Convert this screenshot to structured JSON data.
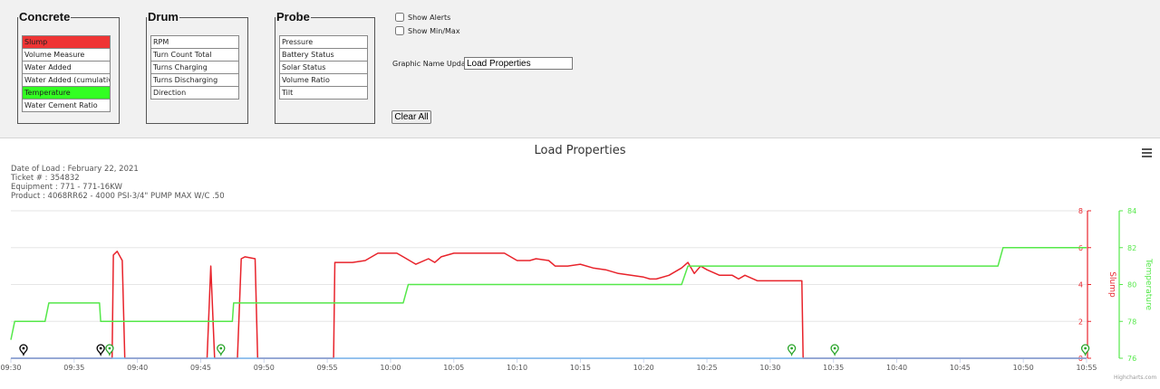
{
  "panels": {
    "concrete": {
      "legend": "Concrete",
      "items": [
        {
          "label": "Slump",
          "color": "#ef3535"
        },
        {
          "label": "Volume Measure",
          "color": "#ffffff"
        },
        {
          "label": "Water Added",
          "color": "#ffffff"
        },
        {
          "label": "Water Added (cumulative)",
          "color": "#ffffff"
        },
        {
          "label": "Temperature",
          "color": "#33ff22"
        },
        {
          "label": "Water Cement Ratio",
          "color": "#ffffff"
        }
      ]
    },
    "drum": {
      "legend": "Drum",
      "items": [
        {
          "label": "RPM"
        },
        {
          "label": "Turn Count Total"
        },
        {
          "label": "Turns Charging"
        },
        {
          "label": "Turns Discharging"
        },
        {
          "label": "Direction"
        }
      ]
    },
    "probe": {
      "legend": "Probe",
      "items": [
        {
          "label": "Pressure"
        },
        {
          "label": "Battery Status"
        },
        {
          "label": "Solar Status"
        },
        {
          "label": "Volume Ratio"
        },
        {
          "label": "Tilt"
        }
      ]
    }
  },
  "options": {
    "show_alerts": "Show Alerts",
    "show_minmax": "Show Min/Max",
    "graphic_name_label": "Graphic Name Update :",
    "graphic_name_value": "Load Properties",
    "clear_all": "Clear All"
  },
  "chart_data": {
    "type": "line",
    "title": "Load Properties",
    "subtitle": [
      "Date of Load : February 22, 2021",
      "Ticket # : 354832",
      "Equipment : 771 - 771-16KW",
      "Product : 4068RR62 - 4000 PSI-3/4\" PUMP MAX W/C .50"
    ],
    "x_ticks": [
      "09:30",
      "09:35",
      "09:40",
      "09:45",
      "09:50",
      "09:55",
      "10:00",
      "10:05",
      "10:10",
      "10:15",
      "10:20",
      "10:25",
      "10:30",
      "10:35",
      "10:40",
      "10:45",
      "10:50",
      "10:55"
    ],
    "xlim": [
      "09:30",
      "10:55"
    ],
    "axes": [
      {
        "label": "Slump",
        "ylim": [
          0,
          8
        ],
        "ticks": [
          0,
          2,
          4,
          6,
          8
        ],
        "color": "#e8232b",
        "position": "right"
      },
      {
        "label": "Temperature",
        "ylim": [
          76,
          84
        ],
        "ticks": [
          76,
          78,
          80,
          82,
          84
        ],
        "color": "#55e84a",
        "position": "right-outer"
      }
    ],
    "series": [
      {
        "name": "Slump",
        "color": "#e8232b",
        "points": [
          [
            "09:30",
            0
          ],
          [
            "09:38",
            0
          ],
          [
            "09:38.1",
            5.6
          ],
          [
            "09:38.4",
            5.8
          ],
          [
            "09:38.8",
            5.3
          ],
          [
            "09:39",
            0
          ],
          [
            "09:45.5",
            0
          ],
          [
            "09:45.8",
            5
          ],
          [
            "09:46.1",
            0
          ],
          [
            "09:47.9",
            0
          ],
          [
            "09:48.2",
            5.4
          ],
          [
            "09:48.5",
            5.5
          ],
          [
            "09:49.3",
            5.4
          ],
          [
            "09:49.5",
            0
          ],
          [
            "09:55.5",
            0
          ],
          [
            "09:55.6",
            5.2
          ],
          [
            "09:57",
            5.2
          ],
          [
            "09:58",
            5.3
          ],
          [
            "09:59",
            5.7
          ],
          [
            "10:00",
            5.7
          ],
          [
            "10:00.5",
            5.7
          ],
          [
            "10:01",
            5.5
          ],
          [
            "10:02",
            5.1
          ],
          [
            "10:03",
            5.4
          ],
          [
            "10:03.5",
            5.2
          ],
          [
            "10:04",
            5.5
          ],
          [
            "10:05",
            5.7
          ],
          [
            "10:07",
            5.7
          ],
          [
            "10:09",
            5.7
          ],
          [
            "10:10",
            5.3
          ],
          [
            "10:11",
            5.3
          ],
          [
            "10:11.5",
            5.4
          ],
          [
            "10:12.5",
            5.3
          ],
          [
            "10:13",
            5
          ],
          [
            "10:14",
            5
          ],
          [
            "10:15",
            5.1
          ],
          [
            "10:16",
            4.9
          ],
          [
            "10:17",
            4.8
          ],
          [
            "10:18",
            4.6
          ],
          [
            "10:19",
            4.5
          ],
          [
            "10:20",
            4.4
          ],
          [
            "10:20.5",
            4.3
          ],
          [
            "10:21",
            4.3
          ],
          [
            "10:22",
            4.5
          ],
          [
            "10:23",
            4.9
          ],
          [
            "10:23.5",
            5.2
          ],
          [
            "10:24",
            4.6
          ],
          [
            "10:24.5",
            5
          ],
          [
            "10:25",
            4.8
          ],
          [
            "10:26",
            4.5
          ],
          [
            "10:27",
            4.5
          ],
          [
            "10:27.5",
            4.3
          ],
          [
            "10:28",
            4.5
          ],
          [
            "10:29",
            4.2
          ],
          [
            "10:32.5",
            4.2
          ],
          [
            "10:32.6",
            0
          ],
          [
            "10:55",
            0
          ]
        ]
      },
      {
        "name": "Temperature",
        "color": "#55e84a",
        "points": [
          [
            "09:30",
            77
          ],
          [
            "09:30.3",
            78
          ],
          [
            "09:31.5",
            78
          ],
          [
            "09:32",
            78
          ],
          [
            "09:32.7",
            78
          ],
          [
            "09:33",
            79
          ],
          [
            "09:34",
            79
          ],
          [
            "09:36",
            79
          ],
          [
            "09:37",
            79
          ],
          [
            "09:37.1",
            78
          ],
          [
            "09:45",
            78
          ],
          [
            "09:47.5",
            78
          ],
          [
            "09:47.6",
            79
          ],
          [
            "09:52",
            79
          ],
          [
            "09:56",
            79
          ],
          [
            "10:01",
            79
          ],
          [
            "10:01.4",
            80
          ],
          [
            "10:08",
            80
          ],
          [
            "10:14",
            80
          ],
          [
            "10:21",
            80
          ],
          [
            "10:23",
            80
          ],
          [
            "10:23.5",
            81
          ],
          [
            "10:30",
            81
          ],
          [
            "10:40",
            81
          ],
          [
            "10:48",
            81
          ],
          [
            "10:48.4",
            82
          ],
          [
            "10:55",
            82
          ]
        ]
      },
      {
        "name": "",
        "color": "#7cb5ec",
        "points": [
          [
            "09:30",
            0
          ],
          [
            "10:55",
            0
          ]
        ]
      }
    ],
    "markers": [
      {
        "time": "09:31",
        "color": "#000000"
      },
      {
        "time": "09:37.1",
        "color": "#000000"
      },
      {
        "time": "09:37.8",
        "color": "#2aa52a"
      },
      {
        "time": "09:46.6",
        "color": "#2aa52a"
      },
      {
        "time": "10:31.7",
        "color": "#2aa52a"
      },
      {
        "time": "10:35.1",
        "color": "#2aa52a"
      },
      {
        "time": "10:54.9",
        "color": "#2aa52a"
      }
    ],
    "credits": "Highcharts.com"
  }
}
